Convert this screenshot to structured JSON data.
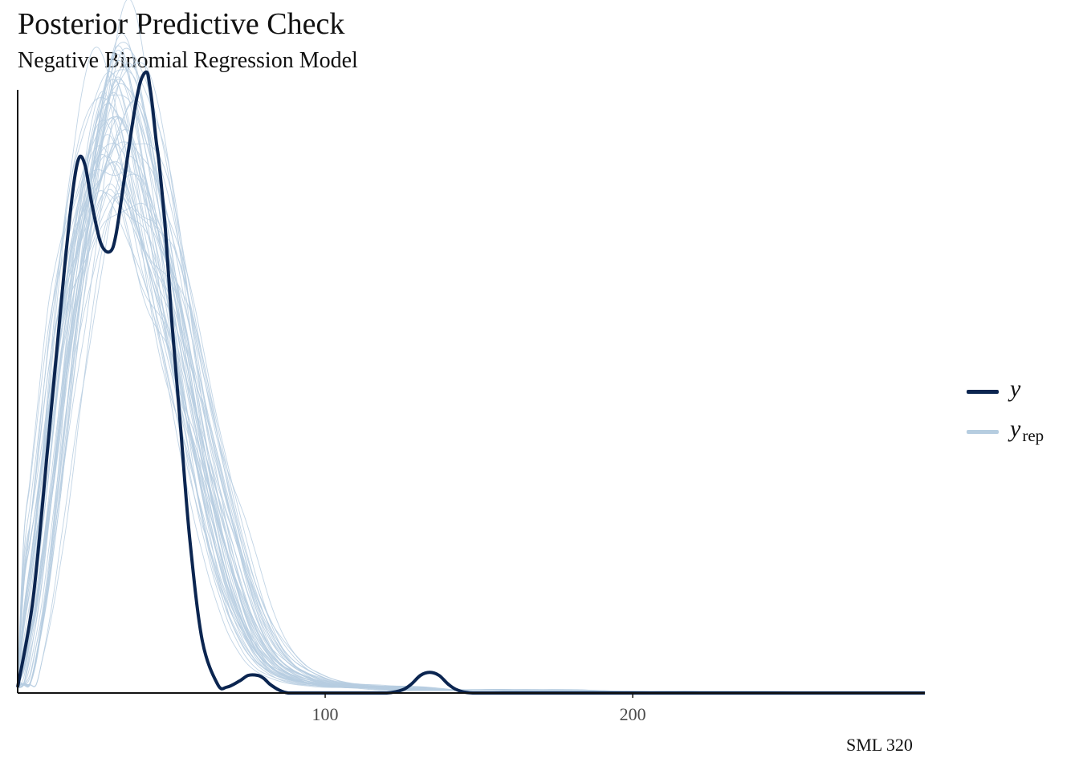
{
  "chart_data": {
    "type": "line",
    "title": "Posterior Predictive Check",
    "subtitle": "Negative Binomial Regression Model",
    "caption": "SML 320",
    "xlabel": "",
    "ylabel": "",
    "xlim": [
      0,
      295
    ],
    "ylim": [
      0,
      0.0205
    ],
    "x_ticks": [
      100,
      200
    ],
    "y_axis_labels": false,
    "grid": false,
    "legend_position": "right",
    "colors": {
      "y": "#0b2550",
      "y_rep": "#b6cde0"
    },
    "series": [
      {
        "name": "y",
        "role": "observed",
        "x": [
          0,
          5,
          10,
          15,
          18,
          20,
          22,
          24,
          27,
          30,
          32,
          35,
          38,
          40,
          42,
          43,
          44,
          45,
          46,
          48,
          50,
          53,
          56,
          60,
          65,
          68,
          72,
          75,
          78,
          80,
          82,
          85,
          88,
          92,
          95,
          100,
          110,
          120,
          125,
          128,
          131,
          134,
          137,
          140,
          143,
          148,
          160,
          200,
          250,
          295
        ],
        "y": [
          0.0002,
          0.0032,
          0.0086,
          0.0142,
          0.0171,
          0.0182,
          0.0179,
          0.0167,
          0.0153,
          0.015,
          0.0156,
          0.0177,
          0.0198,
          0.0208,
          0.0211,
          0.0206,
          0.0198,
          0.0188,
          0.018,
          0.0158,
          0.0128,
          0.009,
          0.0052,
          0.0018,
          0.0003,
          0.0002,
          0.0004,
          0.0006,
          0.0006,
          0.0005,
          0.0003,
          0.0001,
          0.0,
          0.0,
          0.0,
          0.0,
          0.0,
          0.0,
          0.0001,
          0.0003,
          0.0006,
          0.0007,
          0.0006,
          0.0003,
          0.0001,
          0.0,
          0.0,
          0.0,
          0.0,
          0.0
        ]
      },
      {
        "name": "y_rep",
        "role": "replicated",
        "draws": 50,
        "template_x": [
          0,
          5,
          10,
          15,
          20,
          25,
          28,
          30,
          32,
          34,
          36,
          38,
          40,
          43,
          46,
          50,
          55,
          60,
          65,
          70,
          75,
          80,
          85,
          90,
          95,
          100,
          110,
          120,
          130,
          140,
          150,
          160,
          170,
          180,
          200,
          220,
          240,
          260,
          280,
          295
        ],
        "template_y": [
          0.0003,
          0.003,
          0.007,
          0.0115,
          0.015,
          0.0175,
          0.0186,
          0.0191,
          0.0193,
          0.0192,
          0.0189,
          0.0184,
          0.0177,
          0.0165,
          0.0152,
          0.0133,
          0.0108,
          0.0083,
          0.006,
          0.004,
          0.0025,
          0.0015,
          0.0009,
          0.0006,
          0.0004,
          0.0003,
          0.0002,
          0.0002,
          0.0001,
          0.0001,
          0.0001,
          0.0001,
          0.0001,
          5e-05,
          5e-05,
          5e-05,
          3e-05,
          3e-05,
          2e-05,
          2e-05
        ]
      }
    ]
  },
  "legend": [
    {
      "key": "y",
      "label": "y",
      "sub": ""
    },
    {
      "key": "y_rep",
      "label": "y",
      "sub": "rep"
    }
  ]
}
